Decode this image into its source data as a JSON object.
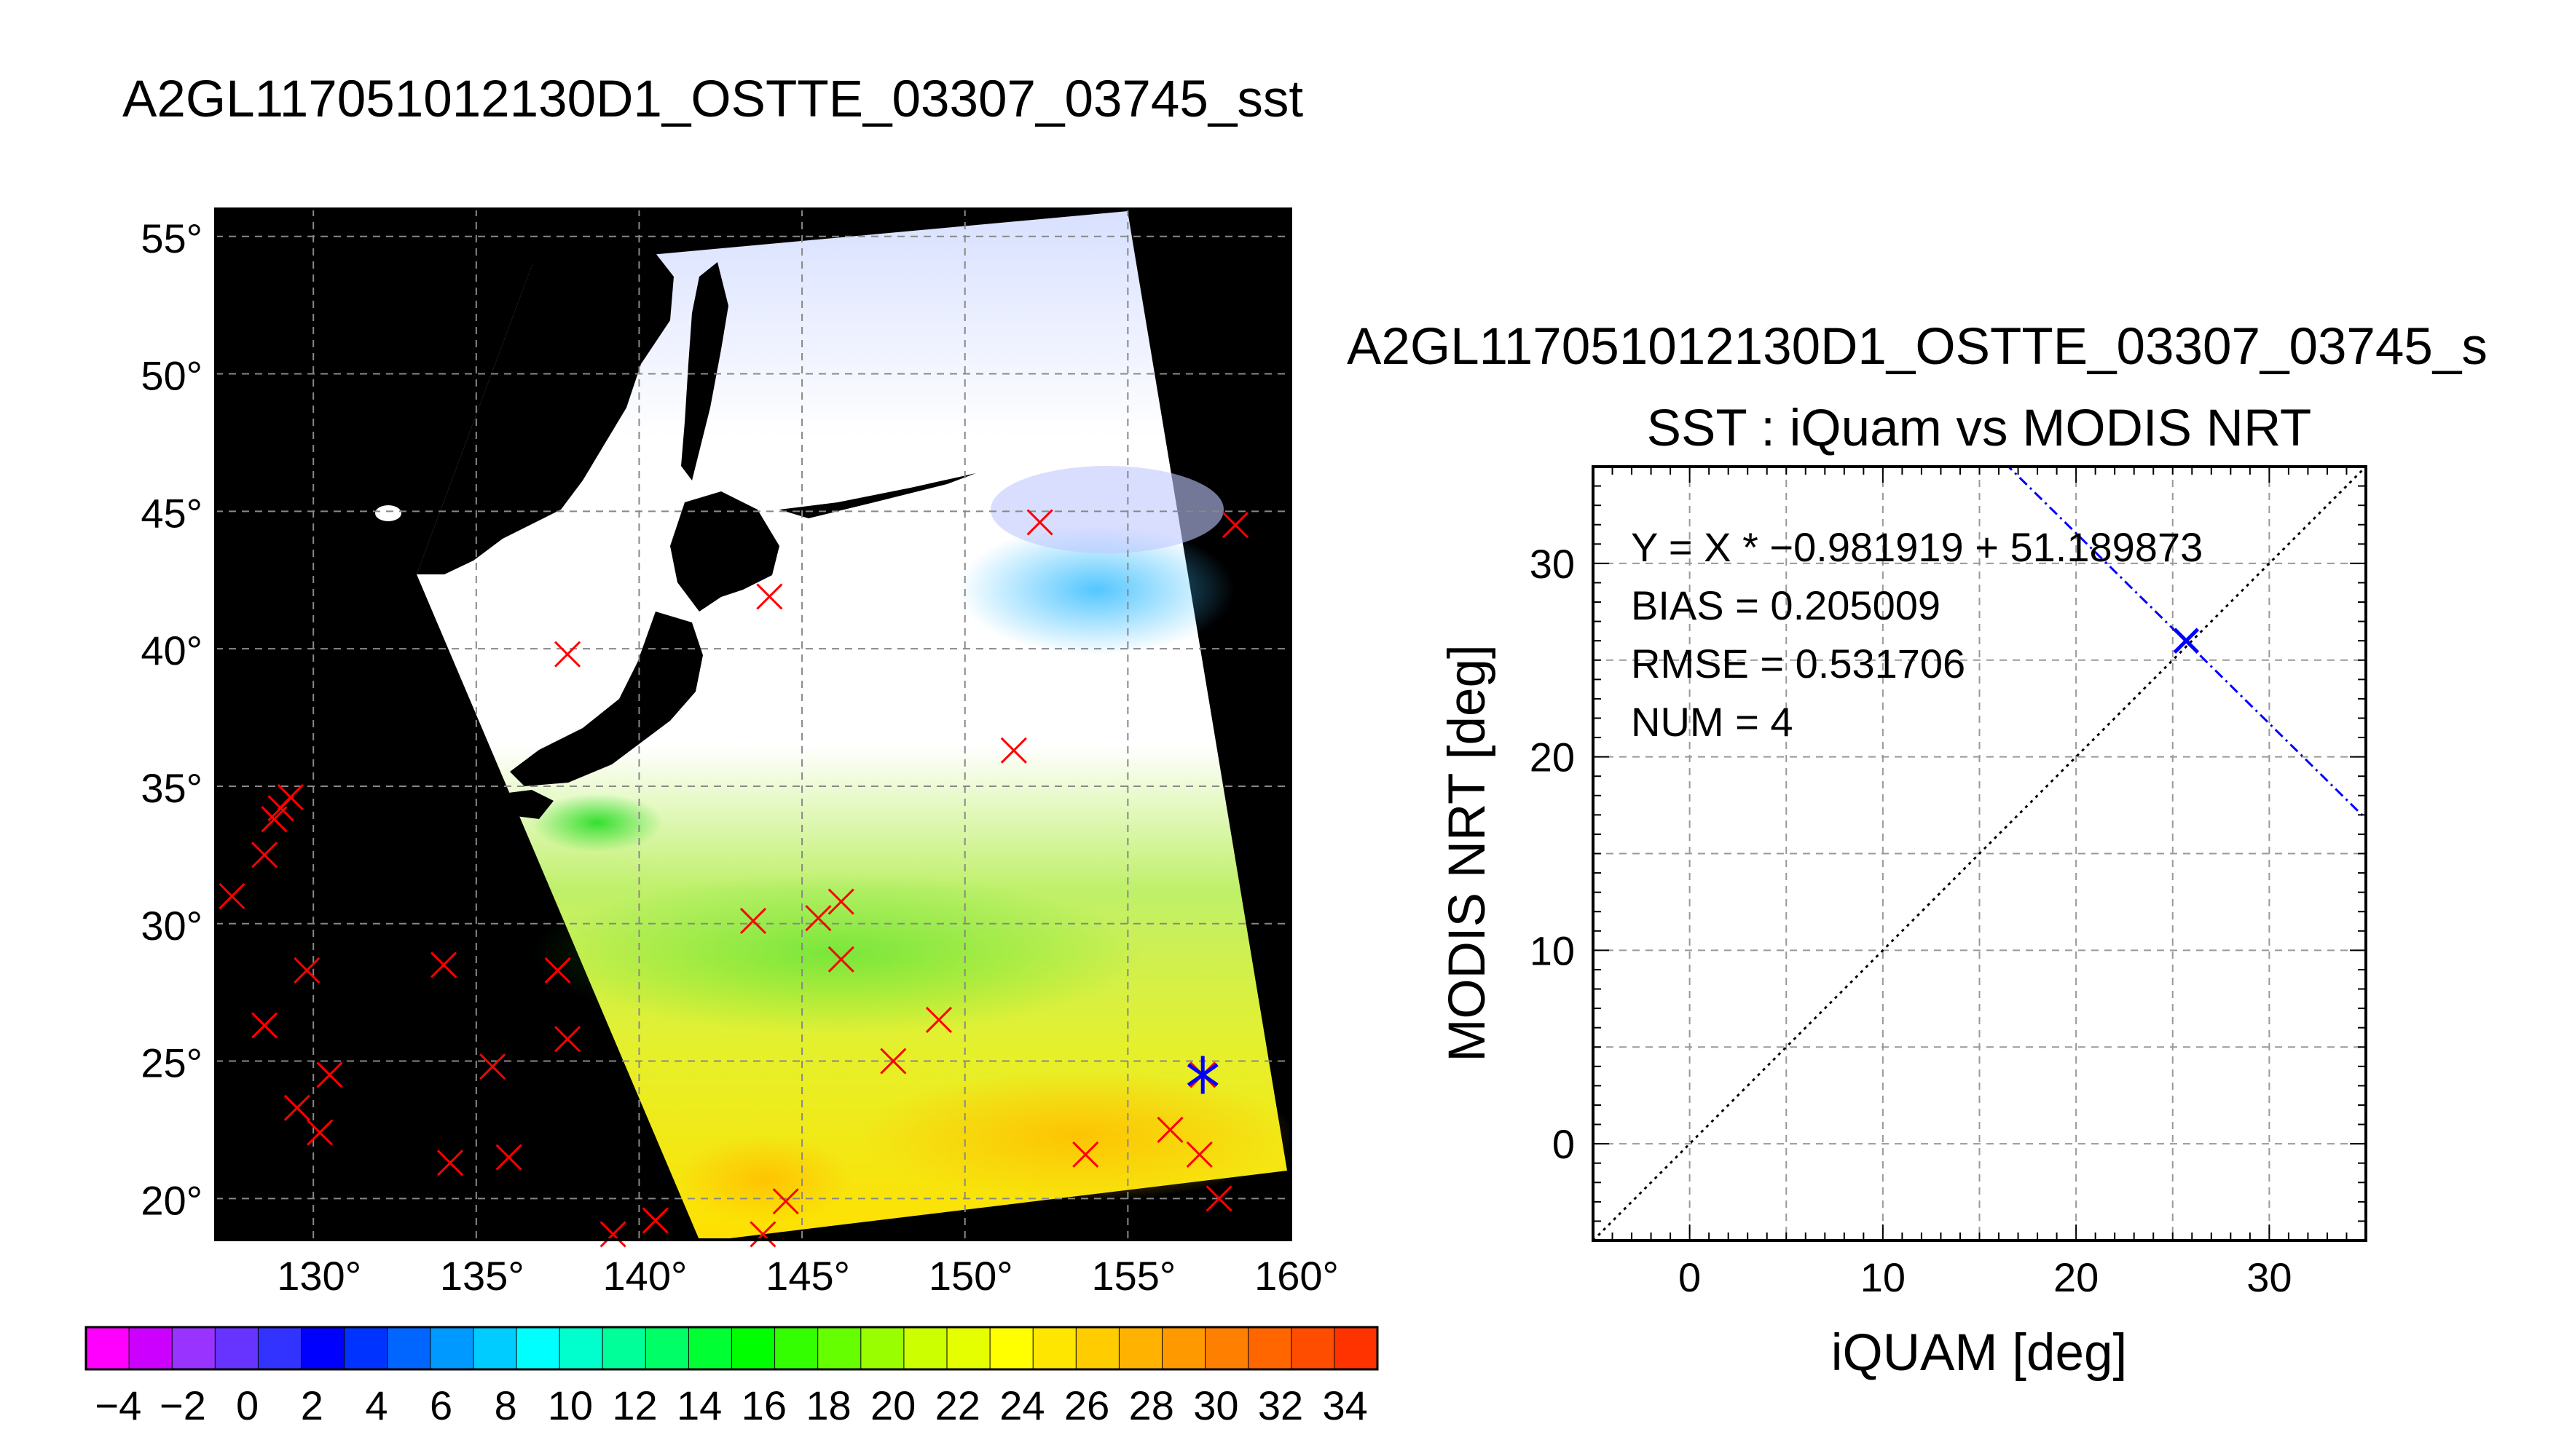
{
  "map": {
    "title": "A2GL117051012130D1_OSTTE_03307_03745_sst",
    "lat_ticks": [
      "55°",
      "50°",
      "45°",
      "40°",
      "35°",
      "30°",
      "25°",
      "20°"
    ],
    "lon_ticks": [
      "130°",
      "135°",
      "140°",
      "145°",
      "150°",
      "155°",
      "160°"
    ],
    "extent": {
      "lon": [
        127,
        160
      ],
      "lat": [
        18.5,
        56
      ]
    },
    "land_color": "#000000",
    "marker_color": "#ff0000",
    "matched_marker_color": "#0000ff",
    "stations": [
      [
        127.5,
        31.0
      ],
      [
        128.5,
        32.5
      ],
      [
        128.8,
        33.8
      ],
      [
        129.0,
        34.2
      ],
      [
        129.3,
        34.6
      ],
      [
        128.5,
        26.3
      ],
      [
        129.8,
        28.3
      ],
      [
        129.5,
        23.3
      ],
      [
        130.2,
        22.4
      ],
      [
        130.5,
        24.5
      ],
      [
        134.0,
        28.5
      ],
      [
        134.2,
        21.3
      ],
      [
        135.5,
        24.8
      ],
      [
        136.0,
        21.5
      ],
      [
        137.5,
        28.3
      ],
      [
        137.8,
        25.8
      ],
      [
        137.8,
        39.8
      ],
      [
        139.2,
        18.7
      ],
      [
        140.5,
        19.2
      ],
      [
        143.5,
        30.1
      ],
      [
        143.8,
        18.7
      ],
      [
        144.0,
        41.9
      ],
      [
        144.5,
        19.9
      ],
      [
        145.5,
        30.2
      ],
      [
        146.2,
        30.8
      ],
      [
        146.2,
        28.7
      ],
      [
        147.8,
        25.0
      ],
      [
        149.2,
        26.5
      ],
      [
        151.5,
        36.3
      ],
      [
        152.3,
        44.6
      ],
      [
        153.7,
        21.6
      ],
      [
        156.3,
        22.5
      ],
      [
        157.2,
        21.6
      ],
      [
        157.8,
        20.0
      ],
      [
        158.3,
        44.5
      ],
      [
        157.3,
        24.5
      ]
    ],
    "matched_station": [
      157.3,
      24.5
    ]
  },
  "colorbar": {
    "tick_labels": [
      "−4",
      "−2",
      "0",
      "2",
      "4",
      "6",
      "8",
      "10",
      "12",
      "14",
      "16",
      "18",
      "20",
      "22",
      "24",
      "26",
      "28",
      "30",
      "32",
      "34"
    ],
    "range": [
      -5,
      35
    ],
    "units": "deg C"
  },
  "scatter": {
    "title_line1": "A2GL117051012130D1_OSTTE_03307_03745_s",
    "title_line2": "SST : iQuam vs MODIS NRT",
    "annotations": [
      "Y = X * −0.981919 + 51.189873",
      "BIAS = 0.205009",
      "RMSE = 0.531706",
      "NUM = 4"
    ]
  },
  "chart_data": [
    {
      "type": "scatter",
      "title": "SST : iQuam vs MODIS NRT",
      "xlabel": "iQUAM [deg]",
      "ylabel": "MODIS NRT [deg]",
      "xlim": [
        -5,
        35
      ],
      "ylim": [
        -5,
        35
      ],
      "x_ticks": [
        0,
        10,
        20,
        30
      ],
      "y_ticks": [
        0,
        10,
        20,
        30
      ],
      "grid": true,
      "series": [
        {
          "type": "scatter",
          "color": "#0000ff",
          "points": [
            [
              25.7,
              26.0
            ]
          ]
        },
        {
          "type": "line",
          "color": "#000000",
          "style": "dotted",
          "points": [
            [
              -5,
              -5
            ],
            [
              35,
              35
            ]
          ]
        },
        {
          "type": "line",
          "color": "#0000ff",
          "style": "dash-dot",
          "points": [
            [
              16.3,
              35.2
            ],
            [
              35,
              16.8
            ]
          ]
        }
      ],
      "regression": {
        "slope": -0.981919,
        "intercept": 51.189873
      },
      "bias": 0.205009,
      "rmse": 0.531706,
      "num": 4
    },
    {
      "type": "heatmap",
      "subject": "sea surface temperature swath over the NW Pacific",
      "colorbar_range": [
        -5,
        35
      ],
      "colorbar_ticks": [
        -4,
        -2,
        0,
        2,
        4,
        6,
        8,
        10,
        12,
        14,
        16,
        18,
        20,
        22,
        24,
        26,
        28,
        30,
        32,
        34
      ],
      "lon_range": [
        127,
        160
      ],
      "lat_range": [
        18.5,
        56
      ]
    }
  ]
}
